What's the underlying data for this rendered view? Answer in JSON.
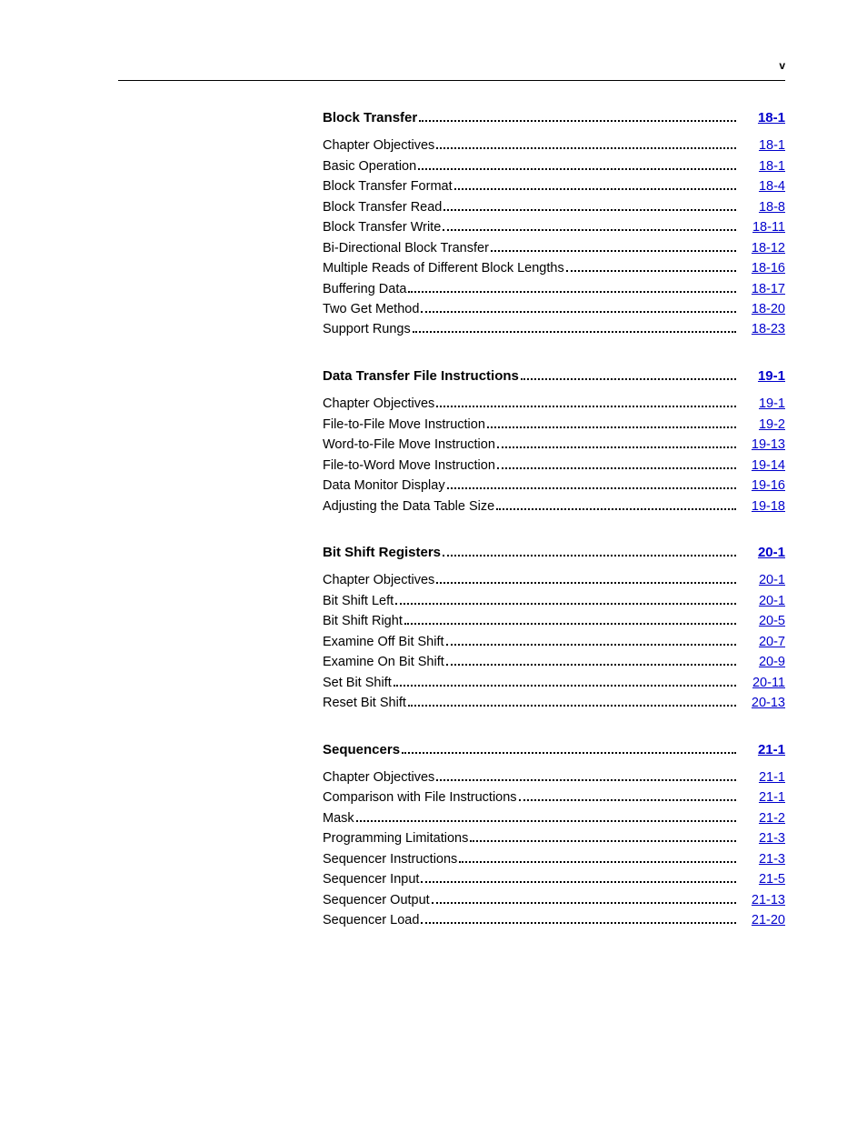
{
  "page_marker": "v",
  "sections": [
    {
      "title": "Block Transfer",
      "page": "18-1",
      "items": [
        {
          "label": "Chapter Objectives",
          "page": "18-1"
        },
        {
          "label": "Basic Operation",
          "page": "18-1"
        },
        {
          "label": "Block Transfer Format",
          "page": "18-4"
        },
        {
          "label": "Block Transfer Read",
          "page": "18-8"
        },
        {
          "label": "Block Transfer Write",
          "page": "18-11"
        },
        {
          "label": "Bi-Directional Block Transfer",
          "page": "18-12"
        },
        {
          "label": "Multiple Reads of Different Block Lengths",
          "page": "18-16"
        },
        {
          "label": "Buffering Data",
          "page": "18-17"
        },
        {
          "label": "Two Get Method",
          "page": "18-20"
        },
        {
          "label": "Support Rungs",
          "page": "18-23"
        }
      ]
    },
    {
      "title": "Data Transfer File Instructions",
      "page": "19-1",
      "items": [
        {
          "label": "Chapter Objectives",
          "page": "19-1"
        },
        {
          "label": "File-to-File Move Instruction",
          "page": "19-2"
        },
        {
          "label": "Word-to-File Move Instruction",
          "page": "19-13"
        },
        {
          "label": "File-to-Word Move Instruction",
          "page": "19-14"
        },
        {
          "label": "Data Monitor Display",
          "page": "19-16"
        },
        {
          "label": "Adjusting the Data Table Size",
          "page": "19-18"
        }
      ]
    },
    {
      "title": "Bit Shift Registers",
      "page": "20-1",
      "items": [
        {
          "label": "Chapter Objectives",
          "page": "20-1"
        },
        {
          "label": "Bit Shift Left",
          "page": "20-1"
        },
        {
          "label": "Bit Shift Right",
          "page": "20-5"
        },
        {
          "label": "Examine Off Bit Shift",
          "page": "20-7"
        },
        {
          "label": "Examine On Bit Shift",
          "page": "20-9"
        },
        {
          "label": "Set Bit Shift",
          "page": "20-11"
        },
        {
          "label": "Reset Bit Shift",
          "page": "20-13"
        }
      ]
    },
    {
      "title": "Sequencers",
      "page": "21-1",
      "items": [
        {
          "label": "Chapter Objectives",
          "page": "21-1"
        },
        {
          "label": "Comparison with File Instructions",
          "page": "21-1"
        },
        {
          "label": "Mask",
          "page": "21-2"
        },
        {
          "label": "Programming Limitations",
          "page": "21-3"
        },
        {
          "label": "Sequencer Instructions",
          "page": "21-3"
        },
        {
          "label": "Sequencer Input",
          "page": "21-5"
        },
        {
          "label": "Sequencer Output",
          "page": "21-13"
        },
        {
          "label": "Sequencer Load",
          "page": "21-20"
        }
      ]
    }
  ]
}
